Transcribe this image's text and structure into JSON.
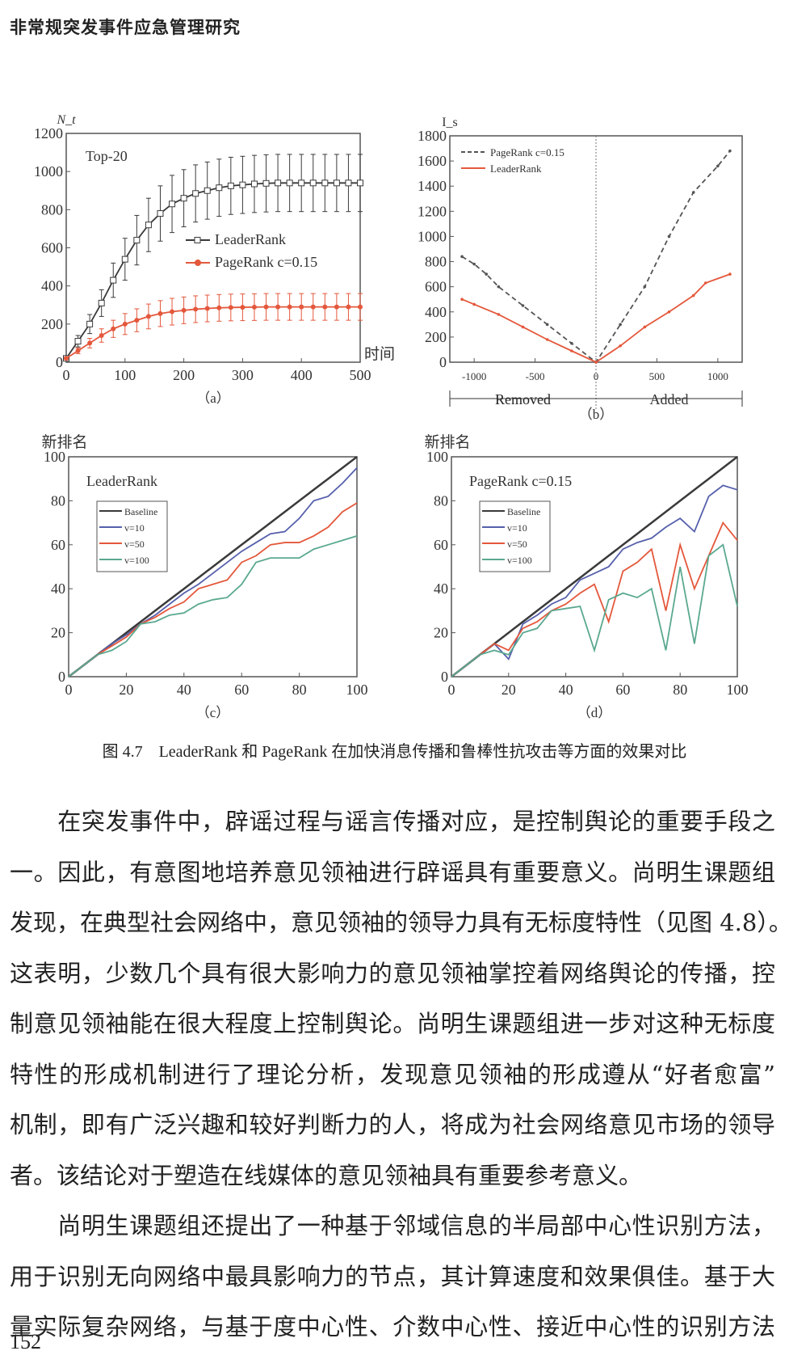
{
  "header": {
    "title": "非常规突发事件应急管理研究"
  },
  "figure": {
    "caption": "图 4.7　LeaderRank 和 PageRank 在加快消息传播和鲁棒性抗攻击等方面的效果对比"
  },
  "colors": {
    "black": "#3a3a3a",
    "red": "#e4583c",
    "blue": "#5660ac",
    "green": "#5aa890",
    "dashed": "#555555"
  },
  "chart_data": [
    {
      "id": "a",
      "type": "line",
      "panel_label": "（a）",
      "annotation": "Top-20",
      "ylabel": "N_t",
      "xlabel": "时间",
      "xlim": [
        0,
        500
      ],
      "ylim": [
        0,
        1200
      ],
      "xticks": [
        0,
        100,
        200,
        300,
        400,
        500
      ],
      "yticks": [
        0,
        200,
        400,
        600,
        800,
        1000,
        1200
      ],
      "legend_position": "center-right",
      "x": [
        0,
        20,
        40,
        60,
        80,
        100,
        120,
        140,
        160,
        180,
        200,
        220,
        240,
        260,
        280,
        300,
        320,
        340,
        360,
        380,
        400,
        420,
        440,
        460,
        480,
        500
      ],
      "series": [
        {
          "name": "LeaderRank",
          "color_key": "black",
          "marker": "square",
          "values": [
            20,
            110,
            200,
            310,
            430,
            540,
            640,
            720,
            780,
            830,
            860,
            885,
            900,
            915,
            925,
            930,
            935,
            938,
            940,
            940,
            940,
            940,
            940,
            940,
            940,
            940
          ],
          "error": [
            10,
            30,
            50,
            70,
            90,
            110,
            130,
            140,
            145,
            150,
            150,
            150,
            150,
            150,
            150,
            150,
            150,
            150,
            150,
            150,
            150,
            150,
            150,
            150,
            150,
            150
          ]
        },
        {
          "name": "PageRank c=0.15",
          "color_key": "red",
          "marker": "circle",
          "values": [
            20,
            60,
            100,
            140,
            175,
            200,
            220,
            240,
            255,
            265,
            272,
            278,
            282,
            285,
            287,
            288,
            289,
            290,
            290,
            290,
            290,
            290,
            290,
            290,
            290,
            290
          ],
          "error": [
            5,
            15,
            25,
            35,
            45,
            55,
            60,
            65,
            68,
            70,
            70,
            70,
            70,
            70,
            70,
            70,
            70,
            70,
            70,
            70,
            70,
            70,
            70,
            70,
            70,
            70
          ]
        }
      ]
    },
    {
      "id": "b",
      "type": "line",
      "panel_label": "（b）",
      "ylabel": "I_s",
      "xlim": [
        -1200,
        1200
      ],
      "ylim": [
        0,
        1800
      ],
      "xticks": [
        -1000,
        -500,
        0,
        500,
        1000
      ],
      "yticks": [
        0,
        200,
        400,
        600,
        800,
        1000,
        1200,
        1400,
        1600,
        1800
      ],
      "region_labels": {
        "left": "Removed",
        "right": "Added"
      },
      "legend_position": "top-left",
      "series": [
        {
          "name": "PageRank c=0.15",
          "color_key": "dashed",
          "style": "dashed",
          "x": [
            -1100,
            -1000,
            -900,
            -800,
            -600,
            -400,
            -200,
            0,
            200,
            400,
            600,
            800,
            1000,
            1100
          ],
          "values": [
            840,
            780,
            700,
            600,
            450,
            300,
            150,
            0,
            300,
            600,
            1000,
            1350,
            1560,
            1680
          ]
        },
        {
          "name": "LeaderRank",
          "color_key": "red",
          "style": "solid",
          "x": [
            -1100,
            -1000,
            -800,
            -600,
            -400,
            -200,
            0,
            200,
            400,
            600,
            800,
            900,
            1100
          ],
          "values": [
            500,
            460,
            380,
            280,
            180,
            90,
            0,
            130,
            280,
            400,
            530,
            630,
            700
          ]
        }
      ]
    },
    {
      "id": "c",
      "type": "line",
      "panel_label": "（c）",
      "title": "LeaderRank",
      "ylabel": "新排名",
      "xlim": [
        0,
        100
      ],
      "ylim": [
        0,
        100
      ],
      "xticks": [
        0,
        20,
        40,
        60,
        80,
        100
      ],
      "yticks": [
        0,
        20,
        40,
        60,
        80,
        100
      ],
      "legend_position": "top-left",
      "x": [
        0,
        5,
        10,
        15,
        20,
        25,
        30,
        35,
        40,
        45,
        50,
        55,
        60,
        65,
        70,
        75,
        80,
        85,
        90,
        95,
        100
      ],
      "series": [
        {
          "name": "Baseline",
          "color_key": "black",
          "values": [
            0,
            5,
            10,
            15,
            20,
            25,
            30,
            35,
            40,
            45,
            50,
            55,
            60,
            65,
            70,
            75,
            80,
            85,
            90,
            95,
            100
          ]
        },
        {
          "name": "v=10",
          "color_key": "blue",
          "values": [
            0,
            5,
            10,
            15,
            19,
            24,
            28,
            33,
            38,
            42,
            47,
            52,
            57,
            61,
            65,
            66,
            72,
            80,
            82,
            88,
            95
          ]
        },
        {
          "name": "v=50",
          "color_key": "red",
          "values": [
            0,
            5,
            10,
            14,
            18,
            24,
            27,
            31,
            34,
            40,
            42,
            44,
            52,
            55,
            60,
            61,
            61,
            64,
            68,
            75,
            79
          ]
        },
        {
          "name": "v=100",
          "color_key": "green",
          "values": [
            0,
            5,
            10,
            12,
            16,
            24,
            25,
            28,
            29,
            33,
            35,
            36,
            42,
            52,
            54,
            54,
            54,
            58,
            60,
            62,
            64
          ]
        }
      ]
    },
    {
      "id": "d",
      "type": "line",
      "panel_label": "（d）",
      "title": "PageRank c=0.15",
      "ylabel": "新排名",
      "xlim": [
        0,
        100
      ],
      "ylim": [
        0,
        100
      ],
      "xticks": [
        0,
        20,
        40,
        60,
        80,
        100
      ],
      "yticks": [
        0,
        20,
        40,
        60,
        80,
        100
      ],
      "legend_position": "top-left",
      "x": [
        0,
        5,
        10,
        15,
        20,
        25,
        30,
        35,
        40,
        45,
        50,
        55,
        60,
        65,
        70,
        75,
        80,
        85,
        90,
        95,
        100
      ],
      "series": [
        {
          "name": "Baseline",
          "color_key": "black",
          "values": [
            0,
            5,
            10,
            15,
            20,
            25,
            30,
            35,
            40,
            45,
            50,
            55,
            60,
            65,
            70,
            75,
            80,
            85,
            90,
            95,
            100
          ]
        },
        {
          "name": "v=10",
          "color_key": "blue",
          "values": [
            0,
            5,
            10,
            15,
            8,
            24,
            28,
            33,
            36,
            44,
            47,
            50,
            58,
            61,
            63,
            68,
            72,
            66,
            82,
            87,
            85
          ]
        },
        {
          "name": "v=50",
          "color_key": "red",
          "values": [
            0,
            5,
            10,
            15,
            12,
            22,
            25,
            30,
            33,
            38,
            42,
            25,
            48,
            52,
            58,
            30,
            60,
            40,
            55,
            70,
            62
          ]
        },
        {
          "name": "v=100",
          "color_key": "green",
          "values": [
            0,
            5,
            10,
            12,
            10,
            20,
            22,
            30,
            31,
            32,
            12,
            35,
            38,
            36,
            40,
            12,
            50,
            15,
            55,
            60,
            32
          ]
        }
      ]
    }
  ],
  "body": {
    "paragraph1": [
      "　　在突发事件中，辟谣过程与谣言传播对应，是控制舆论的重要手段之",
      "一。因此，有意图地培养意见领袖进行辟谣具有重要意义。尚明生课题组",
      "发现，在典型社会网络中，意见领袖的领导力具有无标度特性（见图 4.8）。",
      "这表明，少数几个具有很大影响力的意见领袖掌控着网络舆论的传播，控",
      "制意见领袖能在很大程度上控制舆论。尚明生课题组进一步对这种无标度",
      "特性的形成机制进行了理论分析，发现意见领袖的形成遵从“好者愈富”",
      "机制，即有广泛兴趣和较好判断力的人，将成为社会网络意见市场的领导",
      "者。该结论对于塑造在线媒体的意见领袖具有重要参考意义。"
    ],
    "paragraph2": [
      "　　尚明生课题组还提出了一种基于邻域信息的半局部中心性识别方法，",
      "用于识别无向网络中最具影响力的节点，其计算速度和效果俱佳。基于大",
      "量实际复杂网络，与基于度中心性、介数中心性、接近中心性的识别方法"
    ]
  },
  "page_number": "152"
}
